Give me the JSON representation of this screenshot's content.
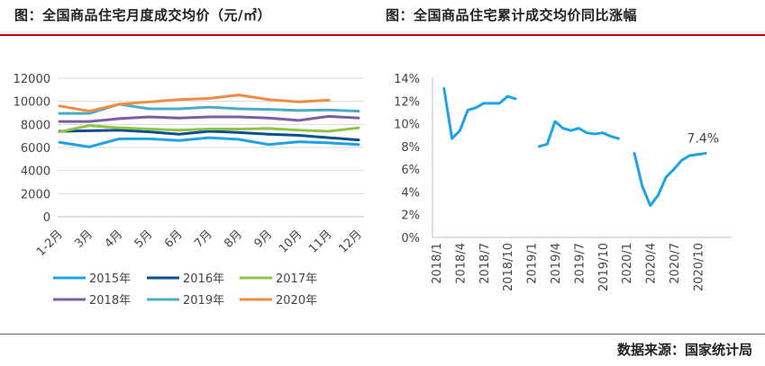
{
  "titles": {
    "left": "图：全国商品住宅月度成交均价（元/㎡）",
    "right": "图：全国商品住宅累计成交均价同比涨幅"
  },
  "source": "数据来源：国家统计局",
  "chart_data": [
    {
      "type": "line",
      "categories": [
        "1-2月",
        "3月",
        "4月",
        "5月",
        "6月",
        "7月",
        "8月",
        "9月",
        "10月",
        "11月",
        "12月"
      ],
      "ylim": [
        0,
        12000
      ],
      "yticks": [
        0,
        2000,
        4000,
        6000,
        8000,
        10000,
        12000
      ],
      "grid": true,
      "legend_position": "bottom",
      "series": [
        {
          "name": "2015年",
          "color": "#1fa2e6",
          "values": [
            6450,
            6050,
            6750,
            6750,
            6600,
            6850,
            6700,
            6250,
            6500,
            6400,
            6250
          ]
        },
        {
          "name": "2016年",
          "color": "#0b4f8f",
          "values": [
            7400,
            7450,
            7500,
            7350,
            7150,
            7400,
            7300,
            7150,
            7050,
            6850,
            6650
          ]
        },
        {
          "name": "2017年",
          "color": "#8fc446",
          "values": [
            7350,
            7900,
            7700,
            7600,
            7500,
            7600,
            7600,
            7650,
            7500,
            7400,
            7700
          ]
        },
        {
          "name": "2018年",
          "color": "#7b5ea3",
          "values": [
            8250,
            8250,
            8500,
            8650,
            8550,
            8650,
            8650,
            8550,
            8350,
            8700,
            8550
          ]
        },
        {
          "name": "2019年",
          "color": "#4bacc6",
          "values": [
            8950,
            8950,
            9750,
            9350,
            9350,
            9500,
            9350,
            9300,
            9200,
            9250,
            9150
          ]
        },
        {
          "name": "2020年",
          "color": "#f28b45",
          "values": [
            9600,
            9150,
            9750,
            9950,
            10150,
            10250,
            10550,
            10150,
            9950,
            10100,
            null
          ]
        }
      ]
    },
    {
      "type": "line",
      "ylim": [
        0,
        14
      ],
      "yticks": [
        0,
        2,
        4,
        6,
        8,
        10,
        12,
        14
      ],
      "ytick_labels": [
        "0%",
        "2%",
        "4%",
        "6%",
        "8%",
        "10%",
        "12%",
        "14%"
      ],
      "xtick_labels": [
        "2018/1",
        "2018/4",
        "2018/7",
        "2018/10",
        "2019/1",
        "2019/4",
        "2019/7",
        "2019/10",
        "2020/1",
        "2020/4",
        "2020/7",
        "2020/10"
      ],
      "annotation": "7.4%",
      "color": "#1fa2e6",
      "series": [
        {
          "x": [
            "2018/2",
            "2018/3",
            "2018/4",
            "2018/5",
            "2018/6",
            "2018/7",
            "2018/8",
            "2018/9",
            "2018/10",
            "2018/11",
            "2018/12"
          ],
          "values": [
            13.1,
            8.7,
            9.4,
            11.2,
            11.4,
            11.8,
            11.8,
            11.8,
            12.4,
            12.2,
            null
          ]
        },
        {
          "x": [
            "2019/2",
            "2019/3",
            "2019/4",
            "2019/5",
            "2019/6",
            "2019/7",
            "2019/8",
            "2019/9",
            "2019/10",
            "2019/11",
            "2019/12"
          ],
          "values": [
            8.0,
            8.2,
            10.2,
            9.6,
            9.4,
            9.6,
            9.2,
            9.1,
            9.2,
            8.9,
            8.7
          ]
        },
        {
          "x": [
            "2020/2",
            "2020/3",
            "2020/4",
            "2020/5",
            "2020/6",
            "2020/7",
            "2020/8",
            "2020/9",
            "2020/10",
            "2020/11"
          ],
          "values": [
            7.4,
            4.5,
            2.8,
            3.7,
            5.3,
            6.0,
            6.8,
            7.2,
            7.3,
            7.4
          ]
        }
      ]
    }
  ]
}
